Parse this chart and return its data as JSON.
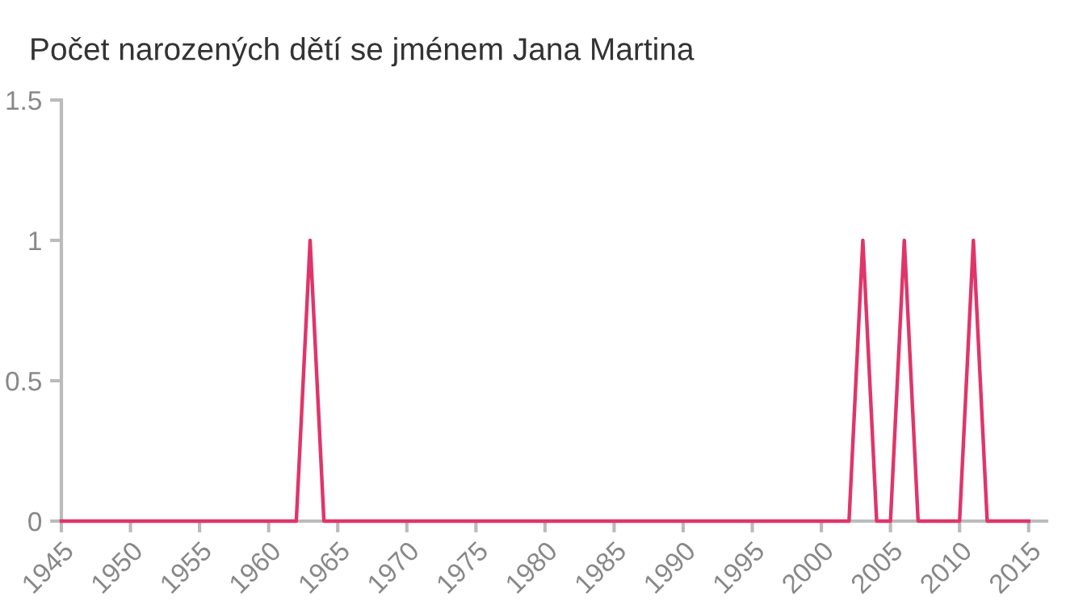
{
  "chart_data": {
    "type": "line",
    "title": "Počet narozených dětí se jménem Jana Martina",
    "x": [
      1945,
      1946,
      1947,
      1948,
      1949,
      1950,
      1951,
      1952,
      1953,
      1954,
      1955,
      1956,
      1957,
      1958,
      1959,
      1960,
      1961,
      1962,
      1963,
      1964,
      1965,
      1966,
      1967,
      1968,
      1969,
      1970,
      1971,
      1972,
      1973,
      1974,
      1975,
      1976,
      1977,
      1978,
      1979,
      1980,
      1981,
      1982,
      1983,
      1984,
      1985,
      1986,
      1987,
      1988,
      1989,
      1990,
      1991,
      1992,
      1993,
      1994,
      1995,
      1996,
      1997,
      1998,
      1999,
      2000,
      2001,
      2002,
      2003,
      2004,
      2005,
      2006,
      2007,
      2008,
      2009,
      2010,
      2011,
      2012,
      2013,
      2014,
      2015
    ],
    "series": [
      {
        "color": "#e0356a",
        "values": [
          0,
          0,
          0,
          0,
          0,
          0,
          0,
          0,
          0,
          0,
          0,
          0,
          0,
          0,
          0,
          0,
          0,
          0,
          1,
          0,
          0,
          0,
          0,
          0,
          0,
          0,
          0,
          0,
          0,
          0,
          0,
          0,
          0,
          0,
          0,
          0,
          0,
          0,
          0,
          0,
          0,
          0,
          0,
          0,
          0,
          0,
          0,
          0,
          0,
          0,
          0,
          0,
          0,
          0,
          0,
          0,
          0,
          0,
          1,
          0,
          0,
          1,
          0,
          0,
          0,
          0,
          1,
          0,
          0,
          0,
          0
        ]
      }
    ],
    "xlim": [
      1945,
      2016.3
    ],
    "xticks": [
      1945,
      1950,
      1955,
      1960,
      1965,
      1970,
      1975,
      1980,
      1985,
      1990,
      1995,
      2000,
      2005,
      2010,
      2015
    ],
    "ylim": [
      0,
      1.5
    ],
    "yticks": [
      0,
      0.5,
      1,
      1.5
    ],
    "grid": false,
    "marker": "none",
    "line_style": "solid"
  }
}
